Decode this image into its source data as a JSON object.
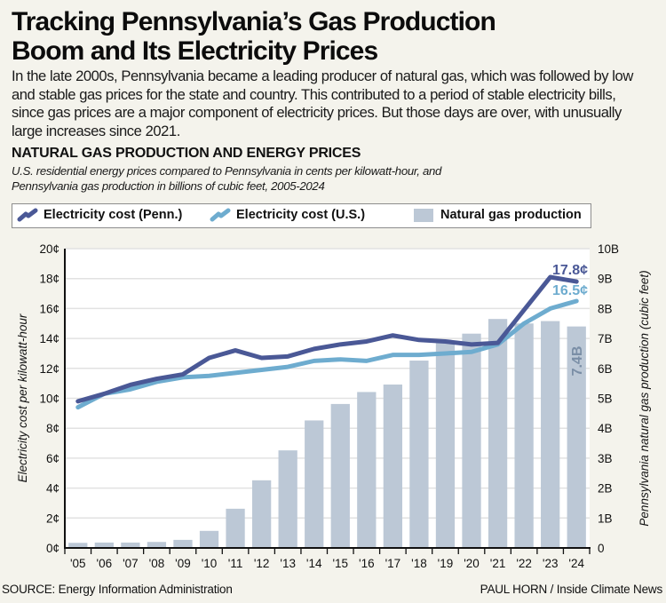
{
  "header": {
    "title_line1": "Tracking Pennsylvania’s Gas Production",
    "title_line2": "Boom and Its Electricity Prices",
    "intro": "In the late 2000s, Pennsylvania became a leading producer of natural gas, which was followed by low and stable gas prices for the state and country. This contributed to a period of stable electricity bills, since gas prices are a major component of electricity prices. But those days are over, with unusually large increases since 2021."
  },
  "legend": {
    "penn_label": "Electricity cost (Penn.)",
    "us_label": "Electricity cost (U.S.)",
    "gas_label": "Natural gas production"
  },
  "colors": {
    "penn": "#4a5896",
    "us": "#6eaccf",
    "gas": "#bcc8d6",
    "gas_label": "#7a8ea6",
    "grid": "#e2e2e2",
    "axis": "#111111"
  },
  "footer": {
    "source": "SOURCE: Energy Information Administration",
    "credit": "PAUL HORN / Inside Climate News"
  },
  "chart_data": {
    "type": "bar",
    "title": "NATURAL GAS PRODUCTION AND ENERGY PRICES",
    "subtitle_line1": "U.S. residential energy prices compared to Pennsylvania in cents per kilowatt-hour, and",
    "subtitle_line2": "Pennsylvania gas production in billions of cubic feet, 2005-2024",
    "categories": [
      "'05",
      "'06",
      "'07",
      "'08",
      "'09",
      "'10",
      "'11",
      "'12",
      "'13",
      "'14",
      "'15",
      "'16",
      "'17",
      "'18",
      "'19",
      "'20",
      "'21",
      "'22",
      "'23",
      "'24"
    ],
    "ylabel": "Electricity cost per kilowatt-hour",
    "ylabel_right": "Pennsylvania natural gas production (cubic feet)",
    "ylim": [
      0,
      20
    ],
    "ylim_right": [
      0,
      10
    ],
    "y_ticks": [
      "0¢",
      "2¢",
      "4¢",
      "6¢",
      "8¢",
      "10¢",
      "12¢",
      "14¢",
      "16¢",
      "18¢",
      "20¢"
    ],
    "y_ticks_right": [
      "0",
      "1B",
      "2B",
      "3B",
      "4B",
      "5B",
      "6B",
      "7B",
      "8B",
      "9B",
      "10B"
    ],
    "grid": true,
    "legend_position": "top",
    "series": [
      {
        "name": "Natural gas production",
        "type": "bar",
        "axis": "right",
        "unit": "billion cubic feet",
        "values": [
          0.17,
          0.18,
          0.18,
          0.2,
          0.27,
          0.57,
          1.31,
          2.26,
          3.26,
          4.26,
          4.81,
          5.21,
          5.46,
          6.26,
          6.9,
          7.16,
          7.65,
          7.5,
          7.58,
          7.4
        ]
      },
      {
        "name": "Electricity cost (U.S.)",
        "type": "line",
        "axis": "left",
        "unit": "cents/kWh",
        "values": [
          9.4,
          10.3,
          10.6,
          11.1,
          11.4,
          11.5,
          11.7,
          11.9,
          12.1,
          12.5,
          12.6,
          12.5,
          12.9,
          12.9,
          13.0,
          13.1,
          13.6,
          15.0,
          16.0,
          16.5
        ]
      },
      {
        "name": "Electricity cost (Penn.)",
        "type": "line",
        "axis": "left",
        "unit": "cents/kWh",
        "values": [
          9.8,
          10.3,
          10.9,
          11.3,
          11.6,
          12.7,
          13.2,
          12.7,
          12.8,
          13.3,
          13.6,
          13.8,
          14.2,
          13.9,
          13.8,
          13.6,
          13.7,
          15.9,
          18.1,
          17.8
        ]
      }
    ],
    "annotations": {
      "penn_end": "17.8¢",
      "us_end": "16.5¢",
      "gas_end": "7.4B"
    }
  }
}
